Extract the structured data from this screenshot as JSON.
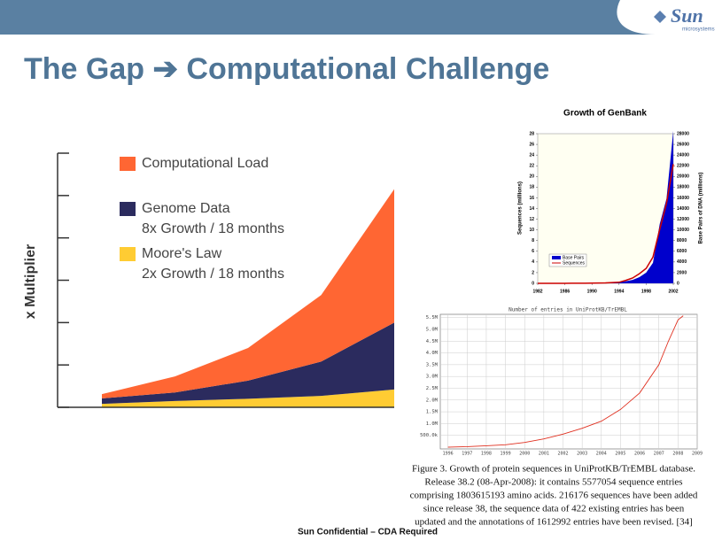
{
  "slide_title": "The Gap ➔ Computational Challenge",
  "logo": {
    "brand": "Sun",
    "sub": "microsystems"
  },
  "footer": "Sun Confidential – CDA Required",
  "chart_data": [
    {
      "type": "area",
      "stacked": true,
      "y_label": "x Multiplier",
      "categories": [
        null,
        null,
        null,
        null,
        null
      ],
      "ylim": [
        0,
        6
      ],
      "yticks": [
        0,
        1,
        2,
        3,
        4,
        5,
        6
      ],
      "series": [
        {
          "name": "Moore's Law",
          "description": "2x Growth / 18 months",
          "color": "#ffcc33",
          "values": [
            0.08,
            0.15,
            0.2,
            0.27,
            0.42
          ]
        },
        {
          "name": "Genome Data",
          "description": "8x Growth / 18 months",
          "color": "#2b2b5e",
          "values": [
            0.13,
            0.2,
            0.43,
            0.81,
            1.58
          ]
        },
        {
          "name": "Computational Load",
          "color": "#ff6633",
          "values": [
            0.1,
            0.38,
            0.77,
            1.57,
            3.15
          ]
        }
      ]
    },
    {
      "type": "line",
      "title": "Growth of GenBank",
      "y_label": "Sequences (millions)",
      "y2_label": "Base Pairs of DNA (millions)",
      "x": [
        1982,
        1983,
        1984,
        1985,
        1986,
        1987,
        1988,
        1989,
        1990,
        1991,
        1992,
        1993,
        1994,
        1995,
        1996,
        1997,
        1998,
        1999,
        2000,
        2001,
        2002
      ],
      "xlim": [
        1982,
        2002
      ],
      "xticks": [
        1982,
        1986,
        1990,
        1994,
        1998,
        2002
      ],
      "ylim": [
        0,
        28
      ],
      "yticks": [
        0,
        2,
        4,
        6,
        8,
        10,
        12,
        14,
        16,
        18,
        20,
        22,
        24,
        26,
        28
      ],
      "y2lim": [
        0,
        28000
      ],
      "y2ticks": [
        0,
        2000,
        4000,
        6000,
        8000,
        10000,
        12000,
        14000,
        16000,
        18000,
        20000,
        22000,
        24000,
        26000,
        28000
      ],
      "series": [
        {
          "name": "Base Pairs",
          "color": "#0000cc",
          "fill": true,
          "axis": "y2",
          "values": [
            0.7,
            2,
            3,
            5,
            10,
            15,
            24,
            35,
            49,
            72,
            101,
            157,
            217,
            385,
            652,
            1160,
            2009,
            3841,
            11101,
            15849,
            28508
          ]
        },
        {
          "name": "Sequences",
          "color": "#cc0000",
          "fill": false,
          "values": [
            0.01,
            0.01,
            0.01,
            0.01,
            0.01,
            0.02,
            0.02,
            0.03,
            0.04,
            0.06,
            0.08,
            0.14,
            0.2,
            0.56,
            1.0,
            1.8,
            2.8,
            4.9,
            10.1,
            14.97,
            22.3
          ]
        }
      ],
      "legend": "lower-left"
    },
    {
      "type": "line",
      "title": "Number of entries in UniProtKB/TrEMBL",
      "x": [
        1996,
        1997,
        1998,
        1999,
        2000,
        2001,
        2002,
        2003,
        2004,
        2005,
        2006,
        2007,
        2007.5,
        2008,
        2008.27
      ],
      "xlim": [
        1995.6,
        2009
      ],
      "xticks": [
        1996,
        1997,
        1998,
        1999,
        2000,
        2001,
        2002,
        2003,
        2004,
        2005,
        2006,
        2007,
        2008,
        2009
      ],
      "ylim": [
        0,
        5600000
      ],
      "yticks": [
        {
          "value": 500000,
          "label": "500.0k"
        },
        {
          "value": 1000000,
          "label": "1.0M"
        },
        {
          "value": 1500000,
          "label": "1.5M"
        },
        {
          "value": 2000000,
          "label": "2.0M"
        },
        {
          "value": 2500000,
          "label": "2.5M"
        },
        {
          "value": 3000000,
          "label": "3.0M"
        },
        {
          "value": 3500000,
          "label": "3.5M"
        },
        {
          "value": 4000000,
          "label": "4.0M"
        },
        {
          "value": 4500000,
          "label": "4.5M"
        },
        {
          "value": 5000000,
          "label": "5.0M"
        },
        {
          "value": 5500000,
          "label": "5.5M"
        }
      ],
      "grid": true,
      "series": [
        {
          "color": "#e03020",
          "values": [
            0,
            20000,
            60000,
            100000,
            200000,
            350000,
            550000,
            800000,
            1100000,
            1600000,
            2300000,
            3500000,
            4500000,
            5400000,
            5577054
          ]
        }
      ],
      "caption": [
        "Figure 3.   Growth of protein sequences in UniProtKB/TrEMBL database.",
        "Release 38.2 (08-Apr-2008): it contains 5577054 sequence entries",
        "comprising 1803615193 amino acids. 216176 sequences have been added",
        "since release 38, the sequence data of 422 existing entries has been",
        "updated and the annotations of 1612992 entries have been revised. [34]"
      ]
    }
  ]
}
